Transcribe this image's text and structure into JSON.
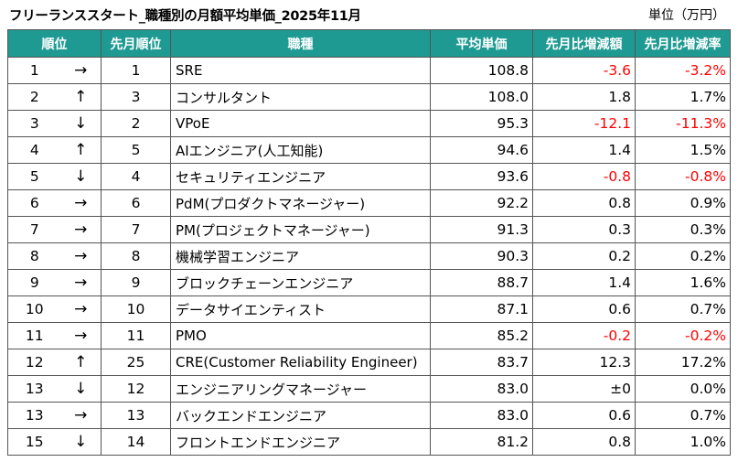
{
  "title": "フリーランススタート_職種別の月額平均単価_2025年11月",
  "unit": "単位（万円）",
  "colors": {
    "header_bg": "#1f9a92",
    "header_text": "#ffffff",
    "negative": "#ff0000"
  },
  "table": {
    "headers": [
      "順位",
      "先月順位",
      "職種",
      "平均単価",
      "先月比増減額",
      "先月比増減率"
    ],
    "rows": [
      {
        "rank": "1",
        "arrow": "→",
        "prev": "1",
        "job": "SRE",
        "avg": "108.8",
        "diff": "-3.6",
        "rate": "-3.2%",
        "neg": true
      },
      {
        "rank": "2",
        "arrow": "↑",
        "prev": "3",
        "job": "コンサルタント",
        "avg": "108.0",
        "diff": "1.8",
        "rate": "1.7%",
        "neg": false
      },
      {
        "rank": "3",
        "arrow": "↓",
        "prev": "2",
        "job": "VPoE",
        "avg": "95.3",
        "diff": "-12.1",
        "rate": "-11.3%",
        "neg": true
      },
      {
        "rank": "4",
        "arrow": "↑",
        "prev": "5",
        "job": "AIエンジニア(人工知能)",
        "avg": "94.6",
        "diff": "1.4",
        "rate": "1.5%",
        "neg": false
      },
      {
        "rank": "5",
        "arrow": "↓",
        "prev": "4",
        "job": "セキュリティエンジニア",
        "avg": "93.6",
        "diff": "-0.8",
        "rate": "-0.8%",
        "neg": true
      },
      {
        "rank": "6",
        "arrow": "→",
        "prev": "6",
        "job": "PdM(プロダクトマネージャー)",
        "avg": "92.2",
        "diff": "0.8",
        "rate": "0.9%",
        "neg": false
      },
      {
        "rank": "7",
        "arrow": "→",
        "prev": "7",
        "job": "PM(プロジェクトマネージャー)",
        "avg": "91.3",
        "diff": "0.3",
        "rate": "0.3%",
        "neg": false
      },
      {
        "rank": "8",
        "arrow": "→",
        "prev": "8",
        "job": "機械学習エンジニア",
        "avg": "90.3",
        "diff": "0.2",
        "rate": "0.2%",
        "neg": false
      },
      {
        "rank": "9",
        "arrow": "→",
        "prev": "9",
        "job": "ブロックチェーンエンジニア",
        "avg": "88.7",
        "diff": "1.4",
        "rate": "1.6%",
        "neg": false
      },
      {
        "rank": "10",
        "arrow": "→",
        "prev": "10",
        "job": "データサイエンティスト",
        "avg": "87.1",
        "diff": "0.6",
        "rate": "0.7%",
        "neg": false
      },
      {
        "rank": "11",
        "arrow": "→",
        "prev": "11",
        "job": "PMO",
        "avg": "85.2",
        "diff": "-0.2",
        "rate": "-0.2%",
        "neg": true
      },
      {
        "rank": "12",
        "arrow": "↑",
        "prev": "25",
        "job": "CRE(Customer Reliability Engineer)",
        "avg": "83.7",
        "diff": "12.3",
        "rate": "17.2%",
        "neg": false
      },
      {
        "rank": "13",
        "arrow": "↓",
        "prev": "12",
        "job": "エンジニアリングマネージャー",
        "avg": "83.0",
        "diff": "±0",
        "rate": "0.0%",
        "neg": false
      },
      {
        "rank": "13",
        "arrow": "→",
        "prev": "13",
        "job": "バックエンドエンジニア",
        "avg": "83.0",
        "diff": "0.6",
        "rate": "0.7%",
        "neg": false
      },
      {
        "rank": "15",
        "arrow": "↓",
        "prev": "14",
        "job": "フロントエンドエンジニア",
        "avg": "81.2",
        "diff": "0.8",
        "rate": "1.0%",
        "neg": false
      }
    ]
  }
}
